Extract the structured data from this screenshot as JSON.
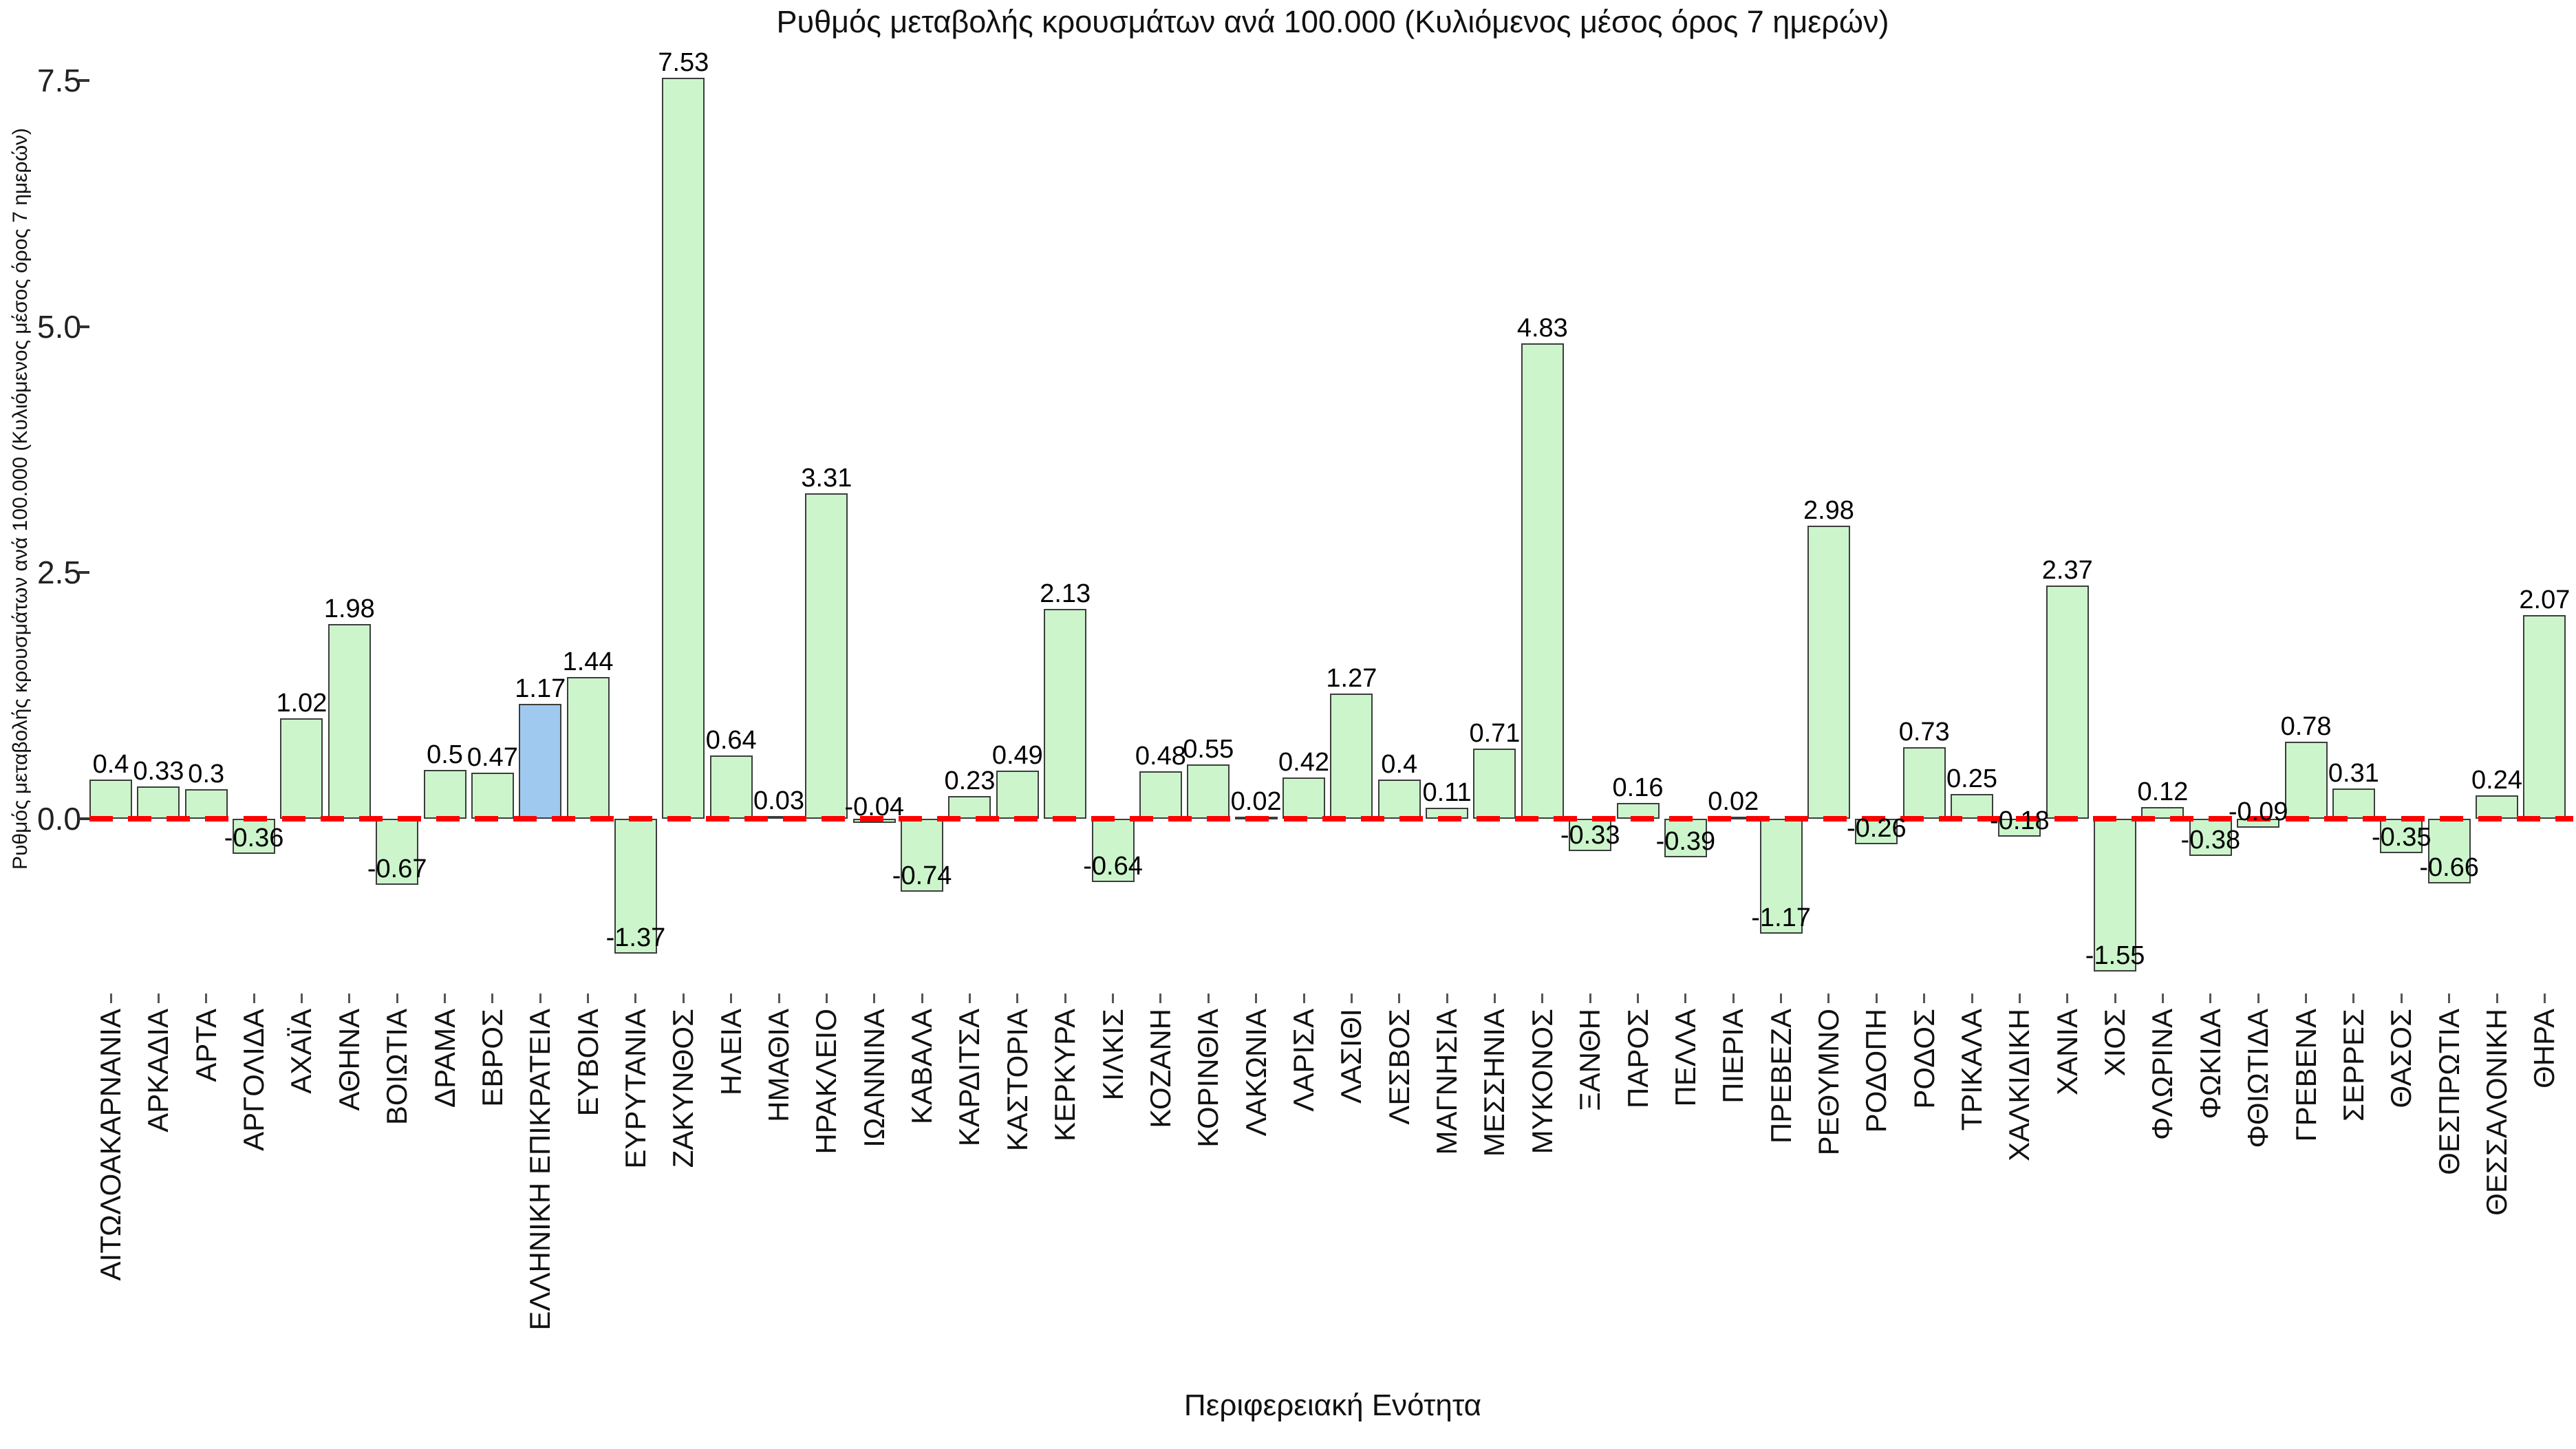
{
  "title": "Ρυθμός μεταβολής κρουσμάτων ανά 100.000 (Κυλιόμενος μέσος όρος 7 ημερών)",
  "y_axis": {
    "label": "Ρυθμός μεταβολής κρουσμάτων ανά 100.000 (Κυλιόμενος μέσος όρος 7 ημερών)",
    "ticks": [
      "0.0",
      "2.5",
      "5.0",
      "7.5"
    ]
  },
  "x_axis": {
    "label": "Περιφερειακή Ενότητα"
  },
  "colors": {
    "bar_fill": "#ccf5cc",
    "bar_edge": "#3d3d3d",
    "highlight_fill": "#9fc9ef",
    "zero_line": "#ff0000"
  },
  "highlight_category": "ΕΛΛΗΝΙΚΗ ΕΠΙΚΡΑΤΕΙΑ",
  "chart_data": {
    "type": "bar",
    "title": "Ρυθμός μεταβολής κρουσμάτων ανά 100.000 (Κυλιόμενος μέσος όρος 7 ημερών)",
    "xlabel": "Περιφερειακή Ενότητα",
    "ylabel": "Ρυθμός μεταβολής κρουσμάτων ανά 100.000 (Κυλιόμενος μέσος όρος 7 ημερών)",
    "ylim": [
      -1.9,
      8.0
    ],
    "ytick_values": [
      0.0,
      2.5,
      5.0,
      7.5
    ],
    "grid": false,
    "zero_line": {
      "value": 0,
      "style": "dashed",
      "color": "#ff0000"
    },
    "highlight_index": 9,
    "categories": [
      "ΑΙΤΩΛΟΑΚΑΡΝΑΝΙΑ",
      "ΑΡΚΑΔΙΑ",
      "ΑΡΤΑ",
      "ΑΡΓΟΛΙΔΑ",
      "ΑΧΑΪΑ",
      "ΑΘΗΝΑ",
      "ΒΟΙΩΤΙΑ",
      "ΔΡΑΜΑ",
      "ΕΒΡΟΣ",
      "ΕΛΛΗΝΙΚΗ ΕΠΙΚΡΑΤΕΙΑ",
      "ΕΥΒΟΙΑ",
      "ΕΥΡΥΤΑΝΙΑ",
      "ΖΑΚΥΝΘΟΣ",
      "ΗΛΕΙΑ",
      "ΗΜΑΘΙΑ",
      "ΗΡΑΚΛΕΙΟ",
      "ΙΩΑΝΝΙΝΑ",
      "ΚΑΒΑΛΑ",
      "ΚΑΡΔΙΤΣΑ",
      "ΚΑΣΤΟΡΙΑ",
      "ΚΕΡΚΥΡΑ",
      "ΚΙΛΚΙΣ",
      "ΚΟΖΑΝΗ",
      "ΚΟΡΙΝΘΙΑ",
      "ΛΑΚΩΝΙΑ",
      "ΛΑΡΙΣΑ",
      "ΛΑΣΙΘΙ",
      "ΛΕΣΒΟΣ",
      "ΜΑΓΝΗΣΙΑ",
      "ΜΕΣΣΗΝΙΑ",
      "ΜΥΚΟΝΟΣ",
      "ΞΑΝΘΗ",
      "ΠΑΡΟΣ",
      "ΠΕΛΛΑ",
      "ΠΙΕΡΙΑ",
      "ΠΡΕΒΕΖΑ",
      "ΡΕΘΥΜΝΟ",
      "ΡΟΔΟΠΗ",
      "ΡΟΔΟΣ",
      "ΤΡΙΚΑΛΑ",
      "ΧΑΛΚΙΔΙΚΗ",
      "ΧΑΝΙΑ",
      "ΧΙΟΣ",
      "ΦΛΩΡΙΝΑ",
      "ΦΩΚΙΔΑ",
      "ΦΘΙΩΤΙΔΑ",
      "ΓΡΕΒΕΝΑ",
      "ΣΕΡΡΕΣ",
      "ΘΑΣΟΣ",
      "ΘΕΣΠΡΩΤΙΑ",
      "ΘΕΣΣΑΛΟΝΙΚΗ",
      "ΘΗΡΑ"
    ],
    "values": [
      0.4,
      0.33,
      0.3,
      -0.36,
      1.02,
      1.98,
      -0.67,
      0.5,
      0.47,
      1.17,
      1.44,
      -1.37,
      7.53,
      0.64,
      0.03,
      3.31,
      -0.04,
      -0.74,
      0.23,
      0.49,
      2.13,
      -0.64,
      0.48,
      0.55,
      0.02,
      0.42,
      1.27,
      0.4,
      0.11,
      0.71,
      4.83,
      -0.33,
      0.16,
      -0.39,
      0.02,
      -1.17,
      2.98,
      -0.26,
      0.73,
      0.25,
      -0.18,
      2.37,
      -1.55,
      0.12,
      -0.38,
      -0.09,
      0.78,
      0.31,
      -0.35,
      -0.66,
      0.24,
      2.07
    ]
  }
}
